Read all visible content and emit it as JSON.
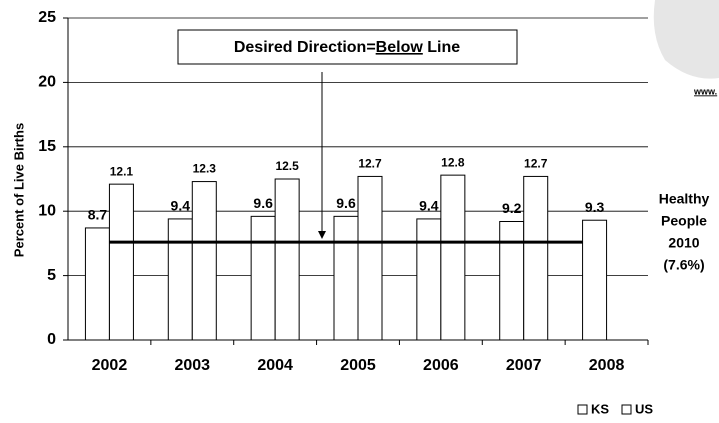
{
  "chart_data": {
    "type": "bar",
    "categories": [
      "2002",
      "2003",
      "2004",
      "2005",
      "2006",
      "2007",
      "2008"
    ],
    "series": [
      {
        "name": "KS",
        "color": "#ffffff",
        "values": [
          8.7,
          9.4,
          9.6,
          9.6,
          9.4,
          9.2,
          9.3
        ]
      },
      {
        "name": "US",
        "color": "#ffffff",
        "values": [
          12.1,
          12.3,
          12.5,
          12.7,
          12.8,
          12.7,
          null
        ]
      }
    ],
    "y_label": "Percent of Live Births",
    "ylim": [
      0,
      25
    ],
    "yticks": [
      0,
      5,
      10,
      15,
      20,
      25
    ],
    "grid": true,
    "reference_line": {
      "value": 7.6,
      "label_lines": [
        "Healthy",
        "People",
        "2010",
        "(7.6%)"
      ]
    },
    "annotation": {
      "before": "Desired Direction=",
      "underlined": "Below",
      "after": " Line"
    },
    "corner_caption": "www."
  }
}
